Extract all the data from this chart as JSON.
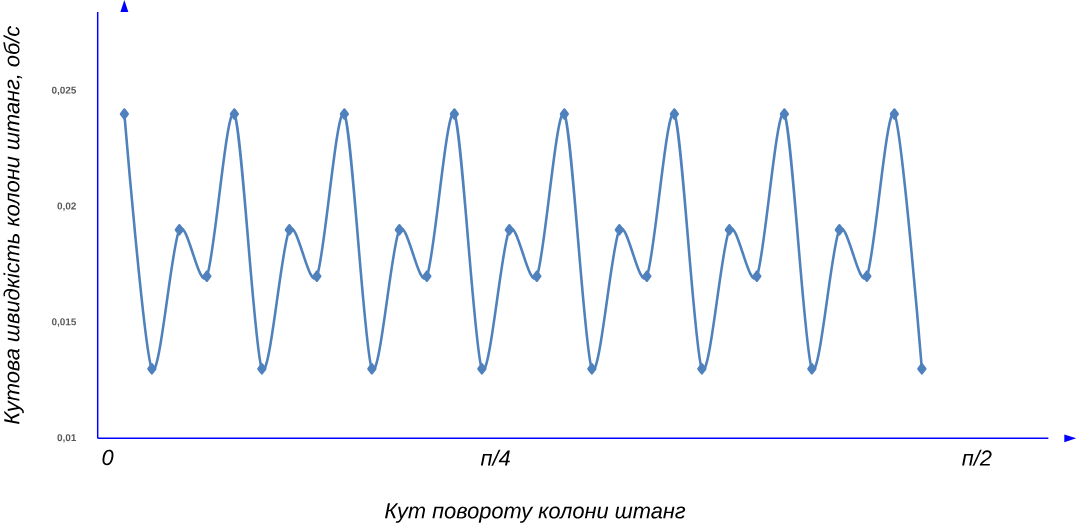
{
  "chart_data": {
    "type": "line",
    "xlabel": "Кут повороту колони штанг",
    "ylabel": "Кутова швидкість колони штанг, об/с",
    "categories": [
      null,
      null,
      null,
      null,
      null,
      null,
      null,
      null,
      null,
      null,
      null,
      null,
      null,
      null,
      null,
      null,
      null,
      null,
      null,
      null,
      null,
      null,
      null,
      null,
      null,
      null,
      null,
      null,
      null,
      null
    ],
    "series": [
      {
        "color": "#4f81bd",
        "values": [
          0.024,
          0.013,
          0.019,
          0.017,
          0.024,
          0.013,
          0.019,
          0.017,
          0.024,
          0.013,
          0.019,
          0.017,
          0.024,
          0.013,
          0.019,
          0.017,
          0.024,
          0.013,
          0.019,
          0.017,
          0.024,
          0.013,
          0.019,
          0.017,
          0.024,
          0.013,
          0.019,
          0.017,
          0.024,
          0.013
        ]
      }
    ],
    "ylim": [
      0.01,
      0.0284
    ],
    "yticks": [
      {
        "value": 0.01,
        "label": "0,01"
      },
      {
        "value": 0.015,
        "label": "0,015"
      },
      {
        "value": 0.02,
        "label": "0,02"
      },
      {
        "value": 0.025,
        "label": "0,025"
      }
    ],
    "annotations": [
      "0",
      "п/4",
      "п/2"
    ],
    "marker": "diamond",
    "line_style": "solid",
    "grid": false
  }
}
